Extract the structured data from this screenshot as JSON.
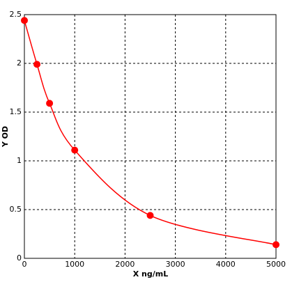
{
  "chart_data": {
    "type": "scatter",
    "x_label": "X ng/mL",
    "y_label": "Y OD",
    "x": [
      0,
      250,
      500,
      1000,
      2500,
      5000
    ],
    "series": [
      {
        "color": "#ff0000",
        "values": [
          2.44,
          1.99,
          1.59,
          1.11,
          0.44,
          0.14
        ]
      }
    ],
    "xlim": [
      0,
      5000
    ],
    "xticks": [
      0,
      1000,
      2000,
      3000,
      4000,
      5000
    ],
    "ylim": [
      0,
      2.5
    ],
    "yticks": [
      0,
      0.5,
      1,
      1.5,
      2,
      2.5
    ],
    "grid": true,
    "line": true
  }
}
